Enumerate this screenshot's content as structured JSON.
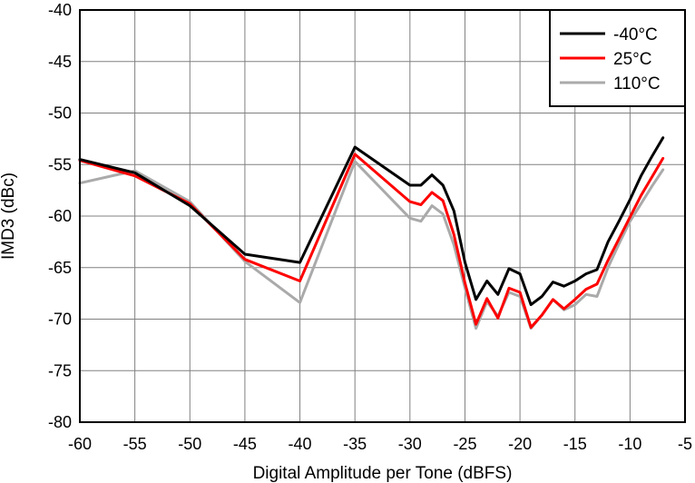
{
  "chart_data": {
    "type": "line",
    "xlabel": "Digital Amplitude per Tone (dBFS)",
    "ylabel": "IMD3 (dBc)",
    "xlim": [
      -60,
      -5
    ],
    "ylim": [
      -80,
      -40
    ],
    "xticks": [
      -60,
      -55,
      -50,
      -45,
      -40,
      -35,
      -30,
      -25,
      -20,
      -15,
      -10,
      -5
    ],
    "yticks": [
      -40,
      -45,
      -50,
      -55,
      -60,
      -65,
      -70,
      -75,
      -80
    ],
    "grid": true,
    "legend_position": "top-right",
    "series": [
      {
        "name": "-40°C",
        "color": "#000000",
        "x": [
          -60,
          -55,
          -50,
          -45,
          -40,
          -35,
          -30,
          -29,
          -28,
          -27,
          -26,
          -25,
          -24,
          -23,
          -22,
          -21,
          -20,
          -19,
          -18,
          -17,
          -16,
          -15,
          -14,
          -13,
          -12,
          -11,
          -10,
          -9,
          -8,
          -7
        ],
        "y": [
          -54.5,
          -55.8,
          -59,
          -63.7,
          -64.5,
          -53.3,
          -57,
          -57,
          -56,
          -57,
          -59.5,
          -64.5,
          -68.1,
          -66.3,
          -67.6,
          -65.1,
          -65.6,
          -68.6,
          -67.8,
          -66.4,
          -66.8,
          -66.3,
          -65.6,
          -65.2,
          -62.5,
          -60.5,
          -58.4,
          -56.1,
          -54.2,
          -52.4
        ]
      },
      {
        "name": "25°C",
        "color": "#ff0000",
        "x": [
          -60,
          -55,
          -50,
          -45,
          -40,
          -35,
          -30,
          -29,
          -28,
          -27,
          -26,
          -25,
          -24,
          -23,
          -22,
          -21,
          -20,
          -19,
          -18,
          -17,
          -16,
          -15,
          -14,
          -13,
          -12,
          -11,
          -10,
          -9,
          -8,
          -7
        ],
        "y": [
          -54.6,
          -56.1,
          -58.8,
          -64.2,
          -66.3,
          -54,
          -58.6,
          -58.9,
          -57.7,
          -58.5,
          -61.8,
          -66.5,
          -70.5,
          -68,
          -69.9,
          -67,
          -67.4,
          -70.8,
          -69.6,
          -68.1,
          -69,
          -68.1,
          -67.1,
          -66.6,
          -64.3,
          -62.2,
          -60.1,
          -58,
          -56.2,
          -54.4
        ]
      },
      {
        "name": "110°C",
        "color": "#aaaaaa",
        "x": [
          -60,
          -55,
          -50,
          -45,
          -40,
          -35,
          -30,
          -29,
          -28,
          -27,
          -26,
          -25,
          -24,
          -23,
          -22,
          -21,
          -20,
          -19,
          -18,
          -17,
          -16,
          -15,
          -14,
          -13,
          -12,
          -11,
          -10,
          -9,
          -8,
          -7
        ],
        "y": [
          -56.8,
          -55.6,
          -58.6,
          -64.4,
          -68.4,
          -54.7,
          -60.2,
          -60.5,
          -59,
          -59.8,
          -62.8,
          -67,
          -70.9,
          -68.3,
          -69.7,
          -67.4,
          -67.8,
          -70.9,
          -69.6,
          -68.1,
          -69.1,
          -68.6,
          -67.6,
          -67.8,
          -65,
          -62.7,
          -60.5,
          -58.8,
          -57.1,
          -55.5
        ]
      }
    ]
  }
}
